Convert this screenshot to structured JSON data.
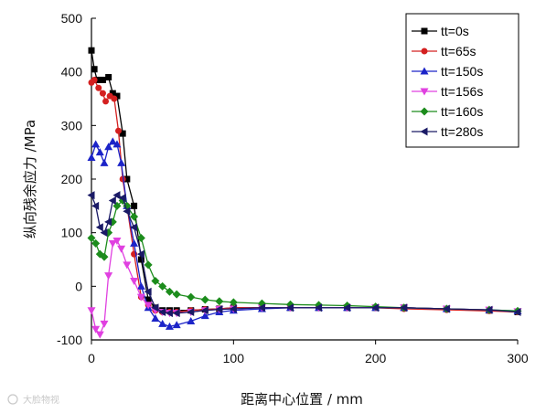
{
  "chart_data": {
    "type": "line",
    "title": "",
    "xlabel": "距离中心位置 / mm",
    "ylabel": "纵向残余应力 /MPa",
    "xlim": [
      0,
      300
    ],
    "ylim": [
      -100,
      500
    ],
    "xticks": [
      0,
      100,
      200,
      300
    ],
    "yticks": [
      -100,
      0,
      100,
      200,
      300,
      400,
      500
    ],
    "xtick_labels": [
      "0",
      "100",
      "200",
      "300"
    ],
    "ytick_labels": [
      "-100",
      "0",
      "100",
      "200",
      "300",
      "400",
      "500"
    ],
    "grid": false,
    "legend_position": "top-right",
    "series": [
      {
        "name": "tt=0s",
        "color": "#000000",
        "marker": "square",
        "x": [
          0,
          2,
          4,
          8,
          12,
          15,
          18,
          22,
          25,
          30,
          35,
          40,
          45,
          50,
          55,
          60,
          70,
          80,
          90,
          100,
          120,
          140,
          160,
          180,
          200,
          220,
          250,
          280,
          300
        ],
        "y": [
          440,
          405,
          385,
          385,
          390,
          360,
          355,
          285,
          200,
          150,
          50,
          -25,
          -40,
          -45,
          -45,
          -45,
          -45,
          -43,
          -42,
          -40,
          -40,
          -40,
          -40,
          -40,
          -40,
          -40,
          -42,
          -45,
          -48
        ]
      },
      {
        "name": "tt=65s",
        "color": "#d42020",
        "marker": "circle",
        "x": [
          0,
          2,
          5,
          8,
          10,
          13,
          16,
          19,
          22,
          25,
          30,
          35,
          40,
          45,
          50,
          55,
          60,
          70,
          80,
          90,
          100,
          120,
          140,
          160,
          180,
          200,
          220,
          250,
          280,
          300
        ],
        "y": [
          380,
          385,
          370,
          360,
          345,
          355,
          350,
          290,
          200,
          150,
          60,
          -20,
          -35,
          -45,
          -48,
          -48,
          -48,
          -45,
          -43,
          -42,
          -40,
          -40,
          -40,
          -40,
          -40,
          -40,
          -42,
          -44,
          -46,
          -48
        ]
      },
      {
        "name": "tt=150s",
        "color": "#1c24c8",
        "marker": "triangle-up",
        "x": [
          0,
          3,
          6,
          9,
          12,
          15,
          18,
          21,
          25,
          30,
          35,
          40,
          45,
          50,
          55,
          60,
          70,
          80,
          90,
          100,
          120,
          140,
          160,
          180,
          200,
          220,
          250,
          280,
          300
        ],
        "y": [
          240,
          265,
          250,
          230,
          260,
          270,
          265,
          230,
          150,
          80,
          0,
          -40,
          -60,
          -70,
          -75,
          -72,
          -65,
          -55,
          -48,
          -45,
          -42,
          -40,
          -40,
          -40,
          -40,
          -40,
          -42,
          -44,
          -46
        ]
      },
      {
        "name": "tt=156s",
        "color": "#e040e0",
        "marker": "triangle-down",
        "x": [
          0,
          3,
          6,
          9,
          12,
          15,
          18,
          21,
          25,
          30,
          35,
          40,
          45,
          50,
          55,
          60,
          70,
          80,
          90,
          100,
          120,
          140,
          160,
          180,
          200,
          220,
          250,
          280,
          300
        ],
        "y": [
          -45,
          -80,
          -90,
          -70,
          20,
          80,
          85,
          70,
          40,
          10,
          -20,
          -35,
          -45,
          -48,
          -50,
          -50,
          -48,
          -45,
          -43,
          -42,
          -40,
          -40,
          -40,
          -40,
          -40,
          -40,
          -42,
          -44,
          -47
        ]
      },
      {
        "name": "tt=160s",
        "color": "#1c8c1c",
        "marker": "diamond",
        "x": [
          0,
          3,
          6,
          9,
          12,
          15,
          18,
          22,
          25,
          30,
          35,
          40,
          45,
          50,
          55,
          60,
          70,
          80,
          90,
          100,
          120,
          140,
          160,
          180,
          200,
          220,
          250,
          280,
          300
        ],
        "y": [
          90,
          80,
          60,
          55,
          100,
          120,
          150,
          160,
          150,
          130,
          90,
          40,
          10,
          0,
          -10,
          -15,
          -20,
          -25,
          -28,
          -30,
          -32,
          -34,
          -35,
          -36,
          -38,
          -40,
          -42,
          -44,
          -46
        ]
      },
      {
        "name": "tt=280s",
        "color": "#1a1a66",
        "marker": "triangle-left",
        "x": [
          0,
          3,
          6,
          9,
          12,
          15,
          18,
          22,
          25,
          30,
          35,
          40,
          45,
          50,
          55,
          60,
          70,
          80,
          90,
          100,
          120,
          140,
          160,
          180,
          200,
          220,
          250,
          280,
          300
        ],
        "y": [
          170,
          150,
          110,
          100,
          120,
          160,
          170,
          165,
          140,
          110,
          60,
          -10,
          -40,
          -48,
          -50,
          -50,
          -48,
          -45,
          -43,
          -42,
          -40,
          -40,
          -40,
          -40,
          -40,
          -40,
          -42,
          -44,
          -48
        ]
      }
    ]
  },
  "watermark": {
    "text": "大脸物视",
    "icon": "weibo-icon"
  }
}
